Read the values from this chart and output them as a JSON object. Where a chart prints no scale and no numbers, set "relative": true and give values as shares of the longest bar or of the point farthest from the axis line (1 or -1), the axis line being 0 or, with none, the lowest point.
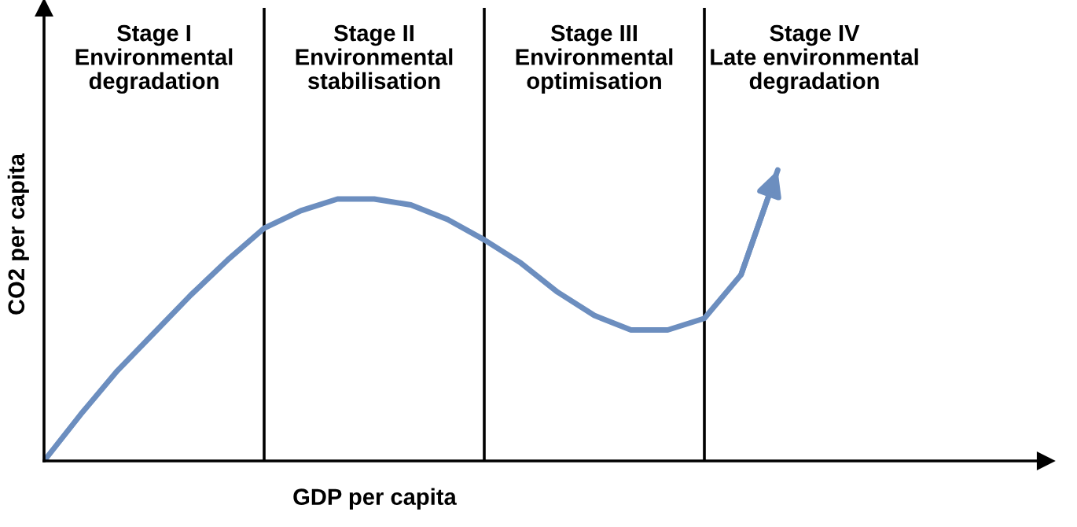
{
  "chart_data": {
    "type": "line",
    "relative": true,
    "xlabel": "GDP per capita",
    "ylabel": "CO2 per capita",
    "color": "#6c8ebf",
    "marker": "none",
    "line_style": "solid",
    "grid": "x",
    "legend": false,
    "categories": [
      null,
      null,
      null,
      null,
      null,
      null,
      null,
      null,
      null,
      null,
      null,
      null,
      null,
      null,
      null,
      null,
      null,
      null,
      null,
      null,
      null
    ],
    "values": [
      0,
      0.16,
      0.31,
      0.44,
      0.57,
      0.69,
      0.8,
      0.86,
      0.9,
      0.9,
      0.88,
      0.83,
      0.76,
      0.68,
      0.58,
      0.5,
      0.45,
      0.45,
      0.49,
      0.64,
      1.0
    ],
    "annotations": [
      "Stage I\nEnvironmental\ndegradation",
      "Stage II\nEnvironmental\nstabilisation",
      "Stage III\nEnvironmental\noptimisation",
      "Stage IV\nLate environmental\ndegradation"
    ]
  }
}
